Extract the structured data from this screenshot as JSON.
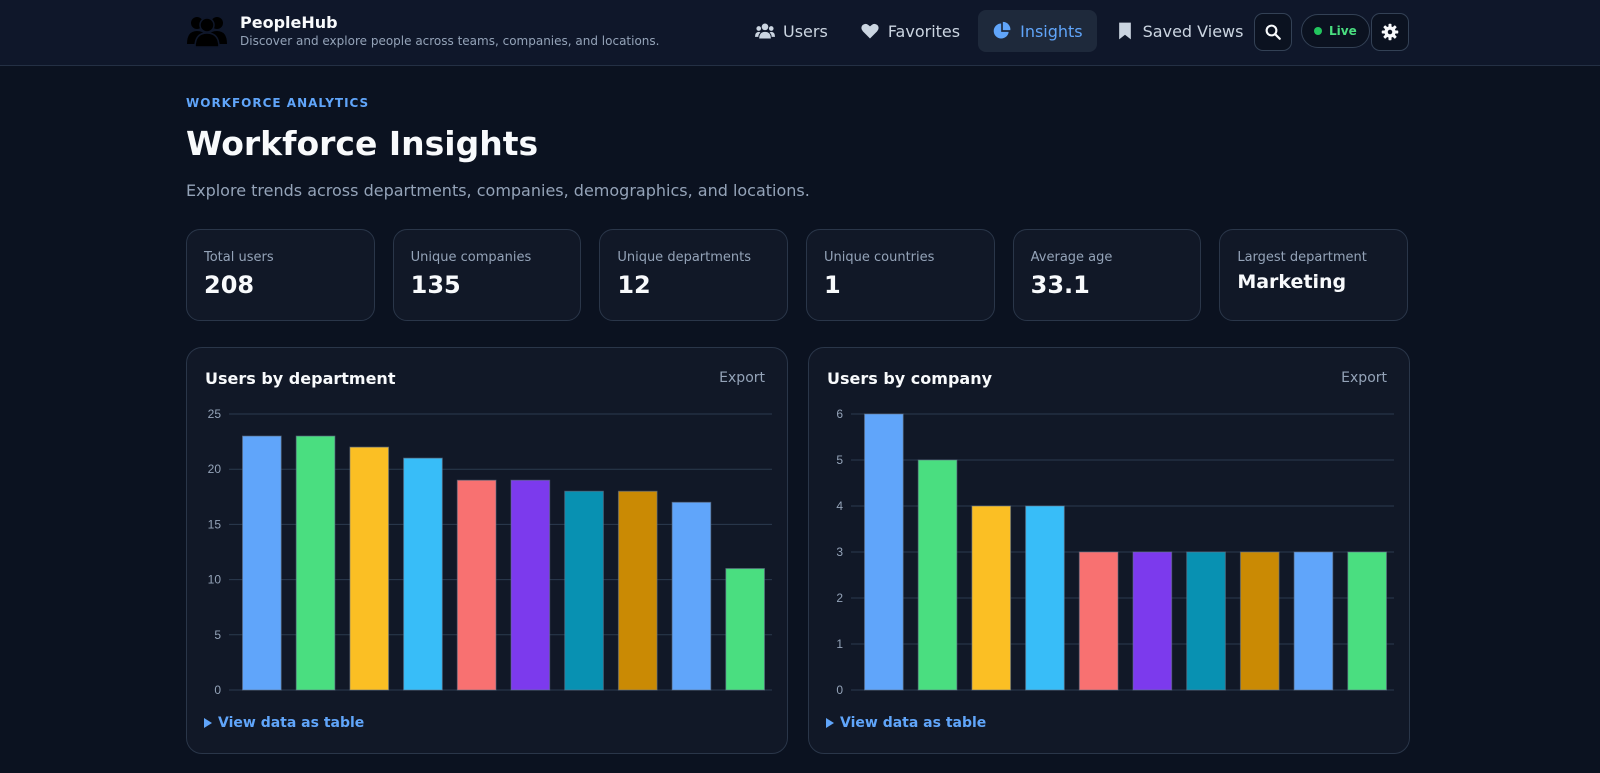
{
  "app": {
    "name": "PeopleHub",
    "tagline": "Discover and explore people across teams, companies, and locations."
  },
  "nav": {
    "items": [
      {
        "label": "Users",
        "icon": "users-icon",
        "active": false
      },
      {
        "label": "Favorites",
        "icon": "heart-icon",
        "active": false
      },
      {
        "label": "Insights",
        "icon": "pie-chart-icon",
        "active": true
      },
      {
        "label": "Saved Views",
        "icon": "bookmark-icon",
        "active": false
      }
    ],
    "live_label": "Live"
  },
  "hero": {
    "eyebrow": "WORKFORCE ANALYTICS",
    "title": "Workforce Insights",
    "subtitle": "Explore trends across departments, companies, demographics, and locations."
  },
  "stats": [
    {
      "label": "Total users",
      "value": "208"
    },
    {
      "label": "Unique companies",
      "value": "135"
    },
    {
      "label": "Unique departments",
      "value": "12"
    },
    {
      "label": "Unique countries",
      "value": "1"
    },
    {
      "label": "Average age",
      "value": "33.1"
    },
    {
      "label": "Largest department",
      "value": "Marketing"
    }
  ],
  "cards": [
    {
      "title": "Users by department",
      "export_label": "Export",
      "table_link": "View data as table"
    },
    {
      "title": "Users by company",
      "export_label": "Export",
      "table_link": "View data as table"
    }
  ],
  "colors": {
    "accent": "#60a5fa",
    "palette": [
      "#60a5fa",
      "#4ade80",
      "#fbbf24",
      "#38bdf8",
      "#f87171",
      "#7c3aed",
      "#0891b2",
      "#ca8a04",
      "#60a5fa",
      "#4ade80"
    ]
  },
  "chart_data": [
    {
      "type": "bar",
      "title": "Users by department",
      "values": [
        23,
        23,
        22,
        21,
        19,
        19,
        18,
        18,
        17,
        11
      ],
      "ylim": [
        0,
        25
      ],
      "yticks": [
        0,
        5,
        10,
        15,
        20,
        25
      ],
      "grid": true
    },
    {
      "type": "bar",
      "title": "Users by company",
      "values": [
        6,
        5,
        4,
        4,
        3,
        3,
        3,
        3,
        3,
        3
      ],
      "ylim": [
        0,
        6
      ],
      "yticks": [
        0,
        1,
        2,
        3,
        4,
        5,
        6
      ],
      "grid": true
    }
  ]
}
